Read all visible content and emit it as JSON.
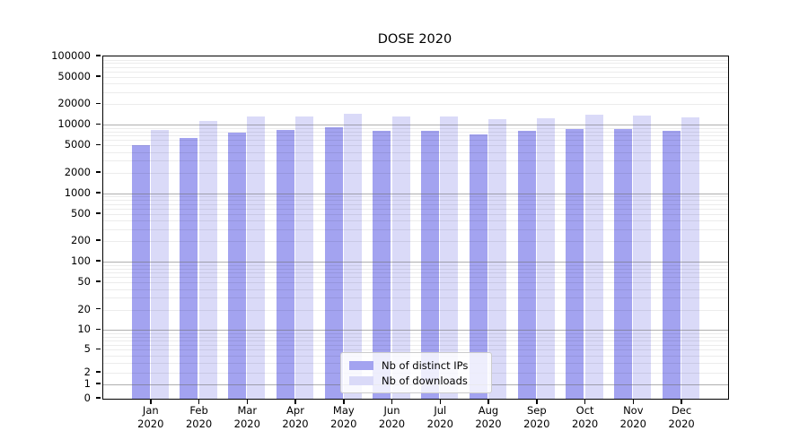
{
  "title": "DOSE 2020",
  "y_axis": {
    "tick_labels": [
      "100000",
      "50000",
      "20000",
      "10000",
      "5000",
      "2000",
      "1000",
      "500",
      "200",
      "100",
      "50",
      "20",
      "10",
      "5",
      "2",
      "1",
      "0"
    ]
  },
  "x_axis": {
    "months": [
      "Jan",
      "Feb",
      "Mar",
      "Apr",
      "May",
      "Jun",
      "Jul",
      "Aug",
      "Sep",
      "Oct",
      "Nov",
      "Dec"
    ],
    "year": "2020"
  },
  "legend": {
    "items": [
      {
        "label": "Nb of distinct IPs",
        "color": "#a3a3f0"
      },
      {
        "label": "Nb of downloads",
        "color": "#dadaf8"
      }
    ]
  },
  "chart_data": {
    "type": "bar",
    "title": "DOSE 2020",
    "categories": [
      "Jan 2020",
      "Feb 2020",
      "Mar 2020",
      "Apr 2020",
      "May 2020",
      "Jun 2020",
      "Jul 2020",
      "Aug 2020",
      "Sep 2020",
      "Oct 2020",
      "Nov 2020",
      "Dec 2020"
    ],
    "series": [
      {
        "name": "Nb of distinct IPs",
        "color": "#a3a3f0",
        "values": [
          5100,
          6400,
          7800,
          8500,
          9300,
          8100,
          8100,
          7300,
          8100,
          8700,
          8700,
          8300
        ]
      },
      {
        "name": "Nb of downloads",
        "color": "#dadaf8",
        "values": [
          8400,
          11600,
          13300,
          13200,
          14700,
          13300,
          13200,
          12000,
          12600,
          14100,
          13800,
          13000
        ]
      }
    ],
    "xlabel": "",
    "ylabel": "",
    "ylim": [
      0,
      100000
    ],
    "yscale": "log-like (asinh/symlog with 0 at baseline)",
    "y_tick_values": [
      100000,
      50000,
      20000,
      10000,
      5000,
      2000,
      1000,
      500,
      200,
      100,
      50,
      20,
      10,
      5,
      2,
      1,
      0
    ],
    "grid": true,
    "grid_minor": true,
    "legend_position": "lower center inside plot"
  }
}
